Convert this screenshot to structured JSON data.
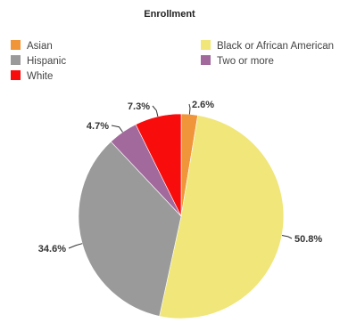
{
  "chart_data": {
    "type": "pie",
    "title": "Enrollment",
    "slices": [
      {
        "label": "Asian",
        "value": 2.6,
        "display": "2.6%",
        "color": "#f0953a"
      },
      {
        "label": "Black or African American",
        "value": 50.8,
        "display": "50.8%",
        "color": "#f0e67a"
      },
      {
        "label": "Hispanic",
        "value": 34.6,
        "display": "34.6%",
        "color": "#9a9a9a"
      },
      {
        "label": "Two or more",
        "value": 4.7,
        "display": "4.7%",
        "color": "#a2699c"
      },
      {
        "label": "White",
        "value": 7.3,
        "display": "7.3%",
        "color": "#f80c0c"
      }
    ],
    "legend_order": [
      "Asian",
      "Black or African American",
      "Hispanic",
      "Two or more",
      "White"
    ],
    "legend_position": "top",
    "start_angle_deg": 0,
    "direction": "clockwise"
  }
}
